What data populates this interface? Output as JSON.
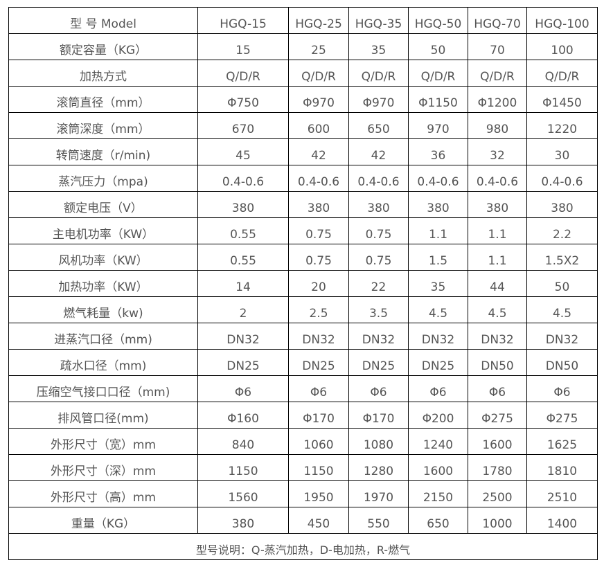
{
  "table": {
    "header": {
      "label": "型 号 Model",
      "models": [
        "HGQ-15",
        "HGQ-25",
        "HGQ-35",
        "HGQ-50",
        "HGQ-70",
        "HGQ-100"
      ]
    },
    "rows": [
      {
        "label": "额定容量（KG）",
        "values": [
          "15",
          "25",
          "35",
          "50",
          "70",
          "100"
        ]
      },
      {
        "label": "加热方式",
        "values": [
          "Q/D/R",
          "Q/D/R",
          "Q/D/R",
          "Q/D/R",
          "Q/D/R",
          "Q/D/R"
        ]
      },
      {
        "label": "滚筒直径（mm）",
        "values": [
          "Φ750",
          "Φ970",
          "Φ970",
          "Φ1150",
          "Φ1200",
          "Φ1450"
        ]
      },
      {
        "label": "滚筒深度（mm）",
        "values": [
          "670",
          "600",
          "650",
          "970",
          "980",
          "1220"
        ]
      },
      {
        "label": "转筒速度（r/min)",
        "values": [
          "45",
          "42",
          "42",
          "36",
          "32",
          "30"
        ]
      },
      {
        "label": "蒸汽压力（mpa)",
        "values": [
          "0.4-0.6",
          "0.4-0.6",
          "0.4-0.6",
          "0.4-0.6",
          "0.4-0.6",
          "0.4-0.6"
        ]
      },
      {
        "label": "额定电压（V）",
        "values": [
          "380",
          "380",
          "380",
          "380",
          "380",
          "380"
        ]
      },
      {
        "label": "主电机功率（KW）",
        "values": [
          "0.55",
          "0.75",
          "0.75",
          "1.1",
          "1.1",
          "2.2"
        ]
      },
      {
        "label": "风机功率（KW）",
        "values": [
          "0.55",
          "0.75",
          "0.75",
          "1.5",
          "1.1",
          "1.5X2"
        ]
      },
      {
        "label": "加热功率（KW）",
        "values": [
          "14",
          "20",
          "22",
          "35",
          "44",
          "50"
        ]
      },
      {
        "label": "燃气耗量（kw)",
        "values": [
          "2",
          "2.5",
          "3.5",
          "4.5",
          "4.5",
          "4.5"
        ]
      },
      {
        "label": "进蒸汽口径（mm)",
        "values": [
          "DN32",
          "DN32",
          "DN32",
          "DN32",
          "DN32",
          "DN32"
        ]
      },
      {
        "label": "疏水口径（mm)",
        "values": [
          "DN25",
          "DN25",
          "DN25",
          "DN25",
          "DN50",
          "DN50"
        ]
      },
      {
        "label": "压缩空气接口口径（mm)",
        "values": [
          "Φ6",
          "Φ6",
          "Φ6",
          "Φ6",
          "Φ6",
          "Φ6"
        ]
      },
      {
        "label": "排风管口径(mm)",
        "values": [
          "Φ160",
          "Φ170",
          "Φ170",
          "Φ200",
          "Φ275",
          "Φ275"
        ]
      },
      {
        "label": "外形尺寸（宽）mm",
        "values": [
          "840",
          "1060",
          "1080",
          "1240",
          "1600",
          "1625"
        ]
      },
      {
        "label": "外形尺寸（深）mm",
        "values": [
          "1150",
          "1150",
          "1280",
          "1600",
          "1780",
          "1810"
        ]
      },
      {
        "label": "外形尺寸（高）mm",
        "values": [
          "1560",
          "1950",
          "1970",
          "2150",
          "2500",
          "2510"
        ]
      },
      {
        "label": "重量（KG）",
        "values": [
          "380",
          "450",
          "550",
          "650",
          "1000",
          "1400"
        ]
      }
    ],
    "note": "型号说明：Q-蒸汽加热，D-电加热，R-燃气"
  }
}
